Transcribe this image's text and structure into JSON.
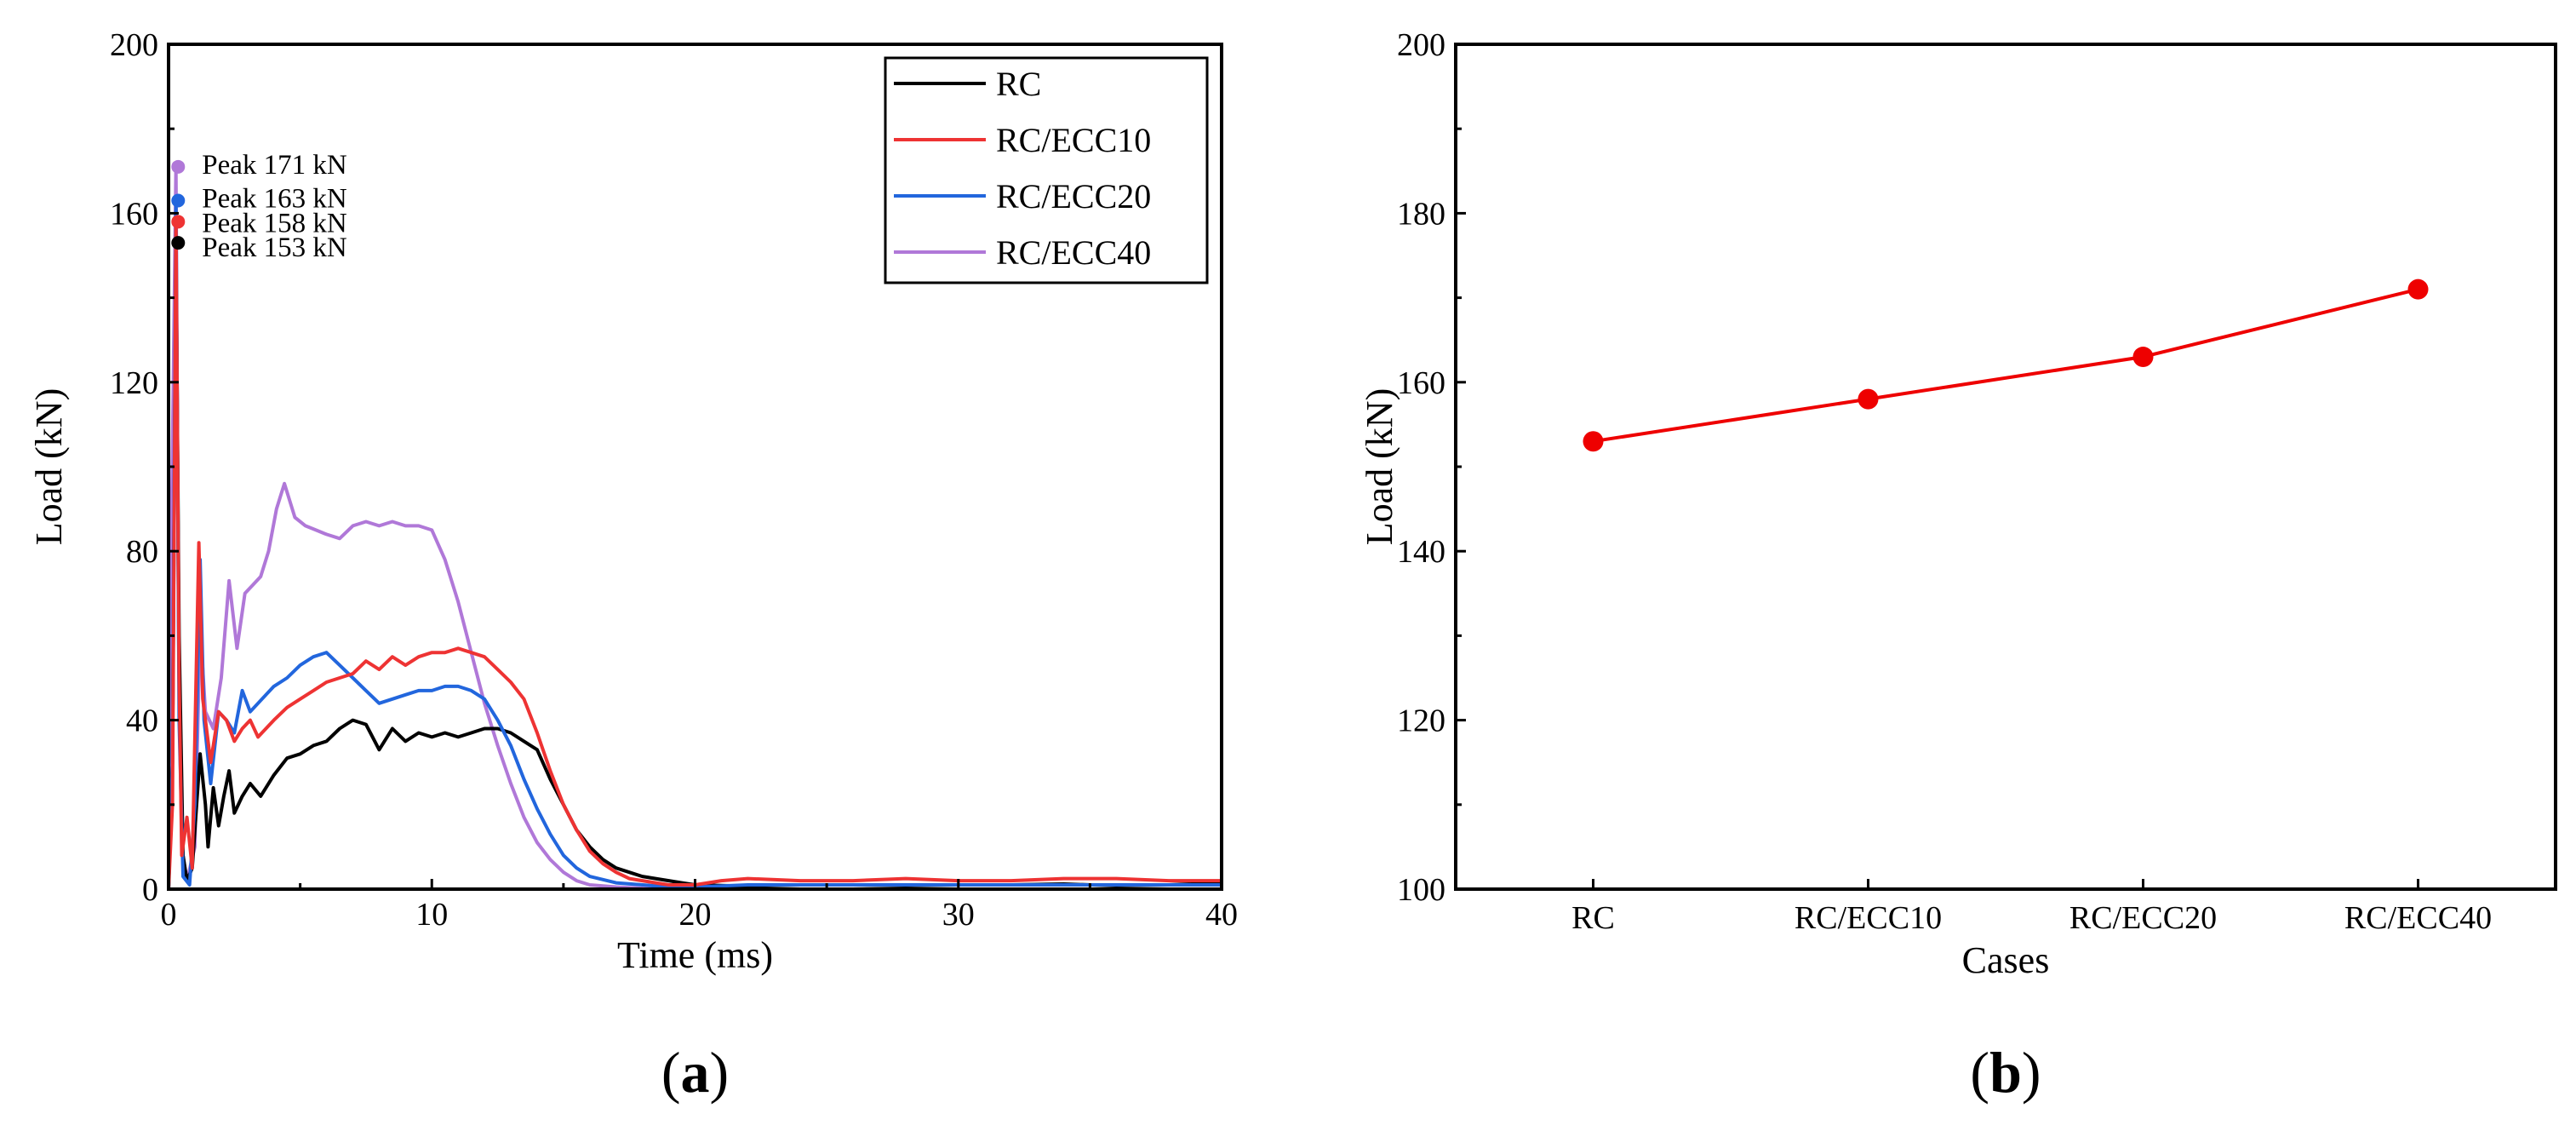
{
  "panel_labels": [
    {
      "open": "(",
      "letter": "a",
      "close": ")"
    },
    {
      "open": "(",
      "letter": "b",
      "close": ")"
    }
  ],
  "chart_data": [
    {
      "type": "line",
      "xlabel": "Time (ms)",
      "ylabel": "Load (kN)",
      "xlim": [
        0,
        40
      ],
      "ylim": [
        0,
        200
      ],
      "xticks": [
        "0",
        "10",
        "20",
        "30",
        "40"
      ],
      "yticks": [
        "0",
        "40",
        "80",
        "120",
        "160",
        "200"
      ],
      "grid": false,
      "legend_position": "top-right",
      "annotations": [
        {
          "text": "Peak 171 kN",
          "x": 0.3,
          "y": 171,
          "color": "#B078D8"
        },
        {
          "text": "Peak 163 kN",
          "x": 0.3,
          "y": 163,
          "color": "#2266DD"
        },
        {
          "text": "Peak 158 kN",
          "x": 0.3,
          "y": 158,
          "color": "#EE3333"
        },
        {
          "text": "Peak 153 kN",
          "x": 0.3,
          "y": 153,
          "color": "#000000"
        }
      ],
      "series": [
        {
          "name": "RC",
          "color": "#000000",
          "points": [
            [
              0,
              0
            ],
            [
              0.15,
              30
            ],
            [
              0.28,
              153
            ],
            [
              0.4,
              60
            ],
            [
              0.55,
              8
            ],
            [
              0.7,
              2
            ],
            [
              0.9,
              5
            ],
            [
              1.2,
              32
            ],
            [
              1.4,
              20
            ],
            [
              1.5,
              10
            ],
            [
              1.7,
              24
            ],
            [
              1.9,
              15
            ],
            [
              2.1,
              22
            ],
            [
              2.3,
              28
            ],
            [
              2.5,
              18
            ],
            [
              2.8,
              22
            ],
            [
              3.1,
              25
            ],
            [
              3.5,
              22
            ],
            [
              4,
              27
            ],
            [
              4.5,
              31
            ],
            [
              5,
              32
            ],
            [
              5.5,
              34
            ],
            [
              6,
              35
            ],
            [
              6.5,
              38
            ],
            [
              7,
              40
            ],
            [
              7.5,
              39
            ],
            [
              8,
              33
            ],
            [
              8.5,
              38
            ],
            [
              9,
              35
            ],
            [
              9.5,
              37
            ],
            [
              10,
              36
            ],
            [
              10.5,
              37
            ],
            [
              11,
              36
            ],
            [
              11.5,
              37
            ],
            [
              12,
              38
            ],
            [
              12.5,
              38
            ],
            [
              13,
              37
            ],
            [
              13.5,
              35
            ],
            [
              14,
              33
            ],
            [
              14.5,
              26
            ],
            [
              15,
              20
            ],
            [
              15.5,
              14
            ],
            [
              16,
              10
            ],
            [
              16.5,
              7
            ],
            [
              17,
              5
            ],
            [
              17.5,
              4
            ],
            [
              18,
              3
            ],
            [
              18.5,
              2.5
            ],
            [
              19,
              2
            ],
            [
              19.5,
              1.5
            ],
            [
              20,
              1
            ],
            [
              22,
              0.7
            ],
            [
              24,
              1
            ],
            [
              26,
              1
            ],
            [
              28,
              0.8
            ],
            [
              30,
              1
            ],
            [
              32,
              1
            ],
            [
              34,
              1.2
            ],
            [
              36,
              0.8
            ],
            [
              38,
              1
            ],
            [
              40,
              1.5
            ]
          ]
        },
        {
          "name": "RC/ECC10",
          "color": "#EE3333",
          "points": [
            [
              0,
              0
            ],
            [
              0.15,
              20
            ],
            [
              0.28,
              158
            ],
            [
              0.4,
              50
            ],
            [
              0.5,
              8
            ],
            [
              0.7,
              17
            ],
            [
              0.9,
              5
            ],
            [
              1.15,
              82
            ],
            [
              1.3,
              45
            ],
            [
              1.6,
              30
            ],
            [
              1.9,
              42
            ],
            [
              2.2,
              40
            ],
            [
              2.5,
              35
            ],
            [
              2.8,
              38
            ],
            [
              3.1,
              40
            ],
            [
              3.4,
              36
            ],
            [
              3.7,
              38
            ],
            [
              4,
              40
            ],
            [
              4.5,
              43
            ],
            [
              5,
              45
            ],
            [
              5.5,
              47
            ],
            [
              6,
              49
            ],
            [
              6.5,
              50
            ],
            [
              7,
              51
            ],
            [
              7.5,
              54
            ],
            [
              8,
              52
            ],
            [
              8.5,
              55
            ],
            [
              9,
              53
            ],
            [
              9.5,
              55
            ],
            [
              10,
              56
            ],
            [
              10.5,
              56
            ],
            [
              11,
              57
            ],
            [
              11.5,
              56
            ],
            [
              12,
              55
            ],
            [
              12.5,
              52
            ],
            [
              13,
              49
            ],
            [
              13.5,
              45
            ],
            [
              14,
              37
            ],
            [
              14.5,
              28
            ],
            [
              15,
              20
            ],
            [
              15.5,
              14
            ],
            [
              16,
              9
            ],
            [
              16.5,
              6
            ],
            [
              17,
              4
            ],
            [
              17.5,
              2.5
            ],
            [
              18,
              2
            ],
            [
              18.5,
              1.5
            ],
            [
              19,
              1
            ],
            [
              20,
              1
            ],
            [
              21,
              2
            ],
            [
              22,
              2.5
            ],
            [
              24,
              2
            ],
            [
              26,
              2
            ],
            [
              28,
              2.5
            ],
            [
              30,
              2
            ],
            [
              32,
              2
            ],
            [
              34,
              2.5
            ],
            [
              36,
              2.5
            ],
            [
              38,
              2
            ],
            [
              40,
              2
            ]
          ]
        },
        {
          "name": "RC/ECC20",
          "color": "#2266DD",
          "points": [
            [
              0,
              0
            ],
            [
              0.15,
              30
            ],
            [
              0.28,
              163
            ],
            [
              0.4,
              40
            ],
            [
              0.55,
              3
            ],
            [
              0.8,
              1
            ],
            [
              1.0,
              20
            ],
            [
              1.2,
              78
            ],
            [
              1.35,
              40
            ],
            [
              1.6,
              25
            ],
            [
              1.9,
              42
            ],
            [
              2.2,
              40
            ],
            [
              2.5,
              37
            ],
            [
              2.8,
              47
            ],
            [
              3.1,
              42
            ],
            [
              3.4,
              44
            ],
            [
              3.7,
              46
            ],
            [
              4,
              48
            ],
            [
              4.5,
              50
            ],
            [
              5,
              53
            ],
            [
              5.5,
              55
            ],
            [
              6,
              56
            ],
            [
              6.5,
              53
            ],
            [
              7,
              50
            ],
            [
              7.5,
              47
            ],
            [
              8,
              44
            ],
            [
              8.5,
              45
            ],
            [
              9,
              46
            ],
            [
              9.5,
              47
            ],
            [
              10,
              47
            ],
            [
              10.5,
              48
            ],
            [
              11,
              48
            ],
            [
              11.5,
              47
            ],
            [
              12,
              45
            ],
            [
              12.5,
              40
            ],
            [
              13,
              34
            ],
            [
              13.5,
              26
            ],
            [
              14,
              19
            ],
            [
              14.5,
              13
            ],
            [
              15,
              8
            ],
            [
              15.5,
              5
            ],
            [
              16,
              3
            ],
            [
              17,
              1.5
            ],
            [
              18,
              1
            ],
            [
              19,
              0.5
            ],
            [
              20,
              0.5
            ],
            [
              22,
              1
            ],
            [
              24,
              1
            ],
            [
              26,
              1
            ],
            [
              28,
              1
            ],
            [
              30,
              1
            ],
            [
              32,
              1
            ],
            [
              34,
              1
            ],
            [
              36,
              1
            ],
            [
              38,
              1
            ],
            [
              40,
              1
            ]
          ]
        },
        {
          "name": "RC/ECC40",
          "color": "#B078D8",
          "points": [
            [
              0,
              0
            ],
            [
              0.12,
              90
            ],
            [
              0.28,
              171
            ],
            [
              0.38,
              60
            ],
            [
              0.5,
              10
            ],
            [
              0.7,
              2
            ],
            [
              1.0,
              10
            ],
            [
              1.2,
              62
            ],
            [
              1.4,
              42
            ],
            [
              1.7,
              38
            ],
            [
              2.0,
              50
            ],
            [
              2.3,
              73
            ],
            [
              2.6,
              57
            ],
            [
              2.9,
              70
            ],
            [
              3.2,
              72
            ],
            [
              3.5,
              74
            ],
            [
              3.8,
              80
            ],
            [
              4.1,
              90
            ],
            [
              4.4,
              96
            ],
            [
              4.8,
              88
            ],
            [
              5.2,
              86
            ],
            [
              5.6,
              85
            ],
            [
              6,
              84
            ],
            [
              6.5,
              83
            ],
            [
              7,
              86
            ],
            [
              7.5,
              87
            ],
            [
              8,
              86
            ],
            [
              8.5,
              87
            ],
            [
              9,
              86
            ],
            [
              9.5,
              86
            ],
            [
              10,
              85
            ],
            [
              10.5,
              78
            ],
            [
              11,
              68
            ],
            [
              11.5,
              56
            ],
            [
              12,
              44
            ],
            [
              12.5,
              34
            ],
            [
              13,
              25
            ],
            [
              13.5,
              17
            ],
            [
              14,
              11
            ],
            [
              14.5,
              7
            ],
            [
              15,
              4
            ],
            [
              15.5,
              2
            ],
            [
              16,
              1
            ],
            [
              17,
              0.5
            ],
            [
              18,
              0.2
            ],
            [
              20,
              0
            ],
            [
              25,
              0
            ],
            [
              30,
              0
            ],
            [
              35,
              0
            ],
            [
              40,
              0
            ]
          ]
        }
      ]
    },
    {
      "type": "line",
      "xlabel": "Cases",
      "ylabel": "Load (kN)",
      "categories": [
        "RC",
        "RC/ECC10",
        "RC/ECC20",
        "RC/ECC40"
      ],
      "ylim": [
        100,
        200
      ],
      "yticks": [
        "100",
        "120",
        "140",
        "160",
        "180",
        "200"
      ],
      "grid": false,
      "series": [
        {
          "color": "#EE0000",
          "values": [
            153,
            158,
            163,
            171
          ]
        }
      ]
    }
  ]
}
